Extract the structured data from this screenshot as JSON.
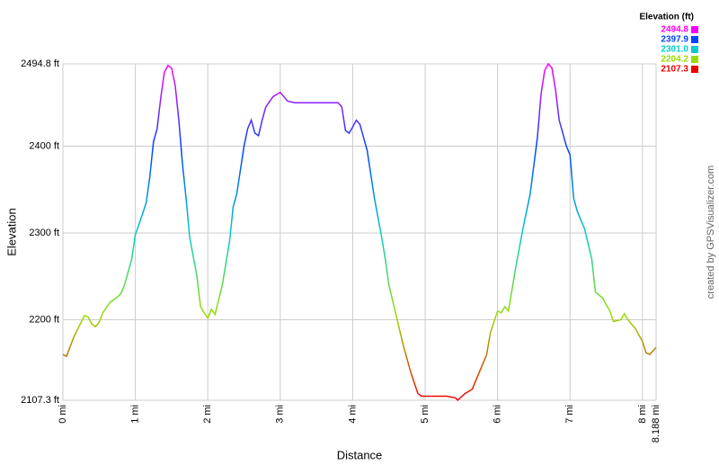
{
  "chart_data": {
    "type": "line",
    "x_label": "Distance",
    "y_label": "Elevation",
    "credit": "created by GPSVisualizer.com",
    "grid": true,
    "legend_position": "top-right",
    "color_scale": {
      "title": "Elevation (ft)",
      "stops": [
        {
          "value": 2494.8,
          "label": "2494.8",
          "color": "#ff00ff"
        },
        {
          "value": 2397.9,
          "label": "2397.9",
          "color": "#0044ff"
        },
        {
          "value": 2301.0,
          "label": "2301.0",
          "color": "#00cccc"
        },
        {
          "value": 2204.2,
          "label": "2204.2",
          "color": "#99dd00"
        },
        {
          "value": 2107.3,
          "label": "2107.3",
          "color": "#ee0000"
        }
      ]
    },
    "xlim": [
      0,
      8.188
    ],
    "ylim": [
      2107.3,
      2494.8
    ],
    "xticks": [
      {
        "value": 0,
        "label": "0 mi"
      },
      {
        "value": 1,
        "label": "1 mi"
      },
      {
        "value": 2,
        "label": "2 mi"
      },
      {
        "value": 3,
        "label": "3 mi"
      },
      {
        "value": 4,
        "label": "4 mi"
      },
      {
        "value": 5,
        "label": "5 mi"
      },
      {
        "value": 6,
        "label": "6 mi"
      },
      {
        "value": 7,
        "label": "7 mi"
      },
      {
        "value": 8,
        "label": "8 mi"
      },
      {
        "value": 8.188,
        "label": "8.188 mi"
      }
    ],
    "yticks": [
      {
        "value": 2107.3,
        "label": "2107.3 ft"
      },
      {
        "value": 2200,
        "label": "2200 ft"
      },
      {
        "value": 2300,
        "label": "2300 ft"
      },
      {
        "value": 2400,
        "label": "2400 ft"
      },
      {
        "value": 2494.8,
        "label": "2494.8 ft"
      }
    ],
    "x": [
      0,
      0.05,
      0.15,
      0.25,
      0.3,
      0.35,
      0.4,
      0.45,
      0.5,
      0.55,
      0.65,
      0.75,
      0.8,
      0.85,
      0.95,
      1.0,
      1.05,
      1.1,
      1.15,
      1.2,
      1.25,
      1.3,
      1.35,
      1.4,
      1.45,
      1.5,
      1.55,
      1.6,
      1.65,
      1.7,
      1.75,
      1.85,
      1.9,
      1.95,
      2.0,
      2.05,
      2.1,
      2.2,
      2.3,
      2.35,
      2.4,
      2.5,
      2.55,
      2.6,
      2.65,
      2.7,
      2.75,
      2.8,
      2.9,
      3.0,
      3.1,
      3.2,
      3.5,
      3.8,
      3.85,
      3.9,
      3.95,
      4.0,
      4.05,
      4.1,
      4.15,
      4.2,
      4.3,
      4.4,
      4.45,
      4.5,
      4.6,
      4.7,
      4.8,
      4.9,
      4.95,
      5.0,
      5.3,
      5.42,
      5.45,
      5.55,
      5.65,
      5.75,
      5.8,
      5.85,
      5.9,
      6.0,
      6.05,
      6.1,
      6.15,
      6.25,
      6.35,
      6.45,
      6.55,
      6.6,
      6.65,
      6.7,
      6.75,
      6.8,
      6.85,
      6.95,
      7.0,
      7.05,
      7.1,
      7.2,
      7.3,
      7.35,
      7.45,
      7.55,
      7.6,
      7.7,
      7.75,
      7.8,
      7.9,
      8.0,
      8.05,
      8.1,
      8.188
    ],
    "series": [
      {
        "values": [
          2160,
          2158,
          2180,
          2197,
          2205,
          2203,
          2195,
          2192,
          2197,
          2208,
          2220,
          2226,
          2230,
          2240,
          2270,
          2298,
          2310,
          2322,
          2335,
          2365,
          2405,
          2420,
          2455,
          2485,
          2493,
          2490,
          2470,
          2430,
          2380,
          2340,
          2295,
          2250,
          2215,
          2208,
          2202,
          2212,
          2206,
          2240,
          2290,
          2330,
          2345,
          2400,
          2420,
          2430,
          2415,
          2412,
          2430,
          2445,
          2457,
          2462,
          2452,
          2450,
          2450,
          2450,
          2445,
          2418,
          2415,
          2422,
          2430,
          2425,
          2410,
          2395,
          2340,
          2295,
          2270,
          2240,
          2205,
          2170,
          2140,
          2115,
          2112,
          2112,
          2112,
          2110,
          2107.3,
          2115,
          2120,
          2140,
          2150,
          2160,
          2185,
          2210,
          2208,
          2215,
          2210,
          2260,
          2305,
          2345,
          2410,
          2460,
          2487,
          2494.8,
          2490,
          2465,
          2430,
          2400,
          2390,
          2340,
          2325,
          2305,
          2270,
          2232,
          2225,
          2210,
          2198,
          2200,
          2207,
          2200,
          2190,
          2175,
          2162,
          2160,
          2168
        ]
      }
    ]
  }
}
